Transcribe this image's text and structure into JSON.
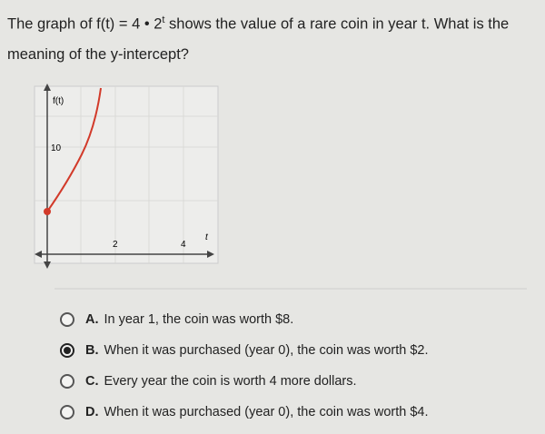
{
  "question": {
    "before": "The graph of f(t) = 4 • 2",
    "exponent": "t",
    "after": " shows the value of a rare coin in year t. What is the meaning of the y-intercept?"
  },
  "graph": {
    "y_axis_label": "f(t)",
    "x_axis_label": "t",
    "y_tick_labels": [
      "10"
    ],
    "x_tick_labels": [
      "2",
      "4"
    ]
  },
  "selected": "B",
  "options": [
    {
      "letter": "A",
      "label": "A.",
      "text": "In year 1, the coin was worth $8."
    },
    {
      "letter": "B",
      "label": "B.",
      "text": "When it was purchased (year 0), the coin was worth $2."
    },
    {
      "letter": "C",
      "label": "C.",
      "text": "Every year the coin is worth 4 more dollars."
    },
    {
      "letter": "D",
      "label": "D.",
      "text": "When it was purchased (year 0), the coin was worth $4."
    }
  ]
}
